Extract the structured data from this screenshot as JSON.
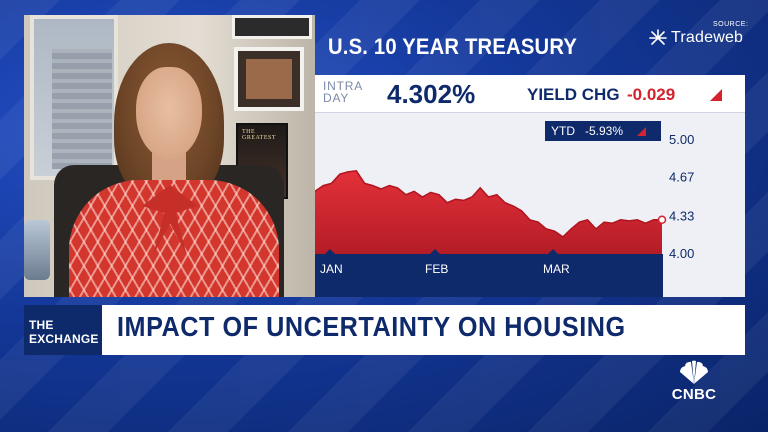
{
  "broadcast": {
    "network": "CNBC",
    "show_name_line1": "THE",
    "show_name_line2": "EXCHANGE",
    "headline": "IMPACT OF UNCERTAINTY ON HOUSING"
  },
  "source": {
    "label": "SOURCE:",
    "name": "Tradeweb"
  },
  "treasury": {
    "title": "U.S. 10 YEAR TREASURY",
    "intraday_line1": "INTRA",
    "intraday_line2": "DAY",
    "yield": "4.302%",
    "yield_chg_label": "YIELD CHG",
    "yield_chg_value": "-0.029",
    "ytd_label": "YTD",
    "ytd_value": "-5.93%"
  },
  "guest_poster_text": "THE GREATEST",
  "colors": {
    "navy": "#0f2a6b",
    "red": "#d4232e",
    "chart_fill": "#d4232e",
    "background_blue": "#14389a"
  },
  "chart_data": {
    "type": "area",
    "title": "U.S. 10 YEAR TREASURY",
    "x_tick_labels": [
      "JAN",
      "FEB",
      "MAR"
    ],
    "y_tick_labels": [
      "5.00",
      "4.67",
      "4.33",
      "4.00"
    ],
    "ylim": [
      4.0,
      5.0
    ],
    "y_ticks": [
      5.0,
      4.67,
      4.33,
      4.0
    ],
    "grid": false,
    "series": [
      {
        "values": [
          4.55,
          4.6,
          4.62,
          4.7,
          4.72,
          4.73,
          4.62,
          4.6,
          4.57,
          4.6,
          4.58,
          4.52,
          4.55,
          4.5,
          4.54,
          4.52,
          4.45,
          4.48,
          4.47,
          4.5,
          4.58,
          4.5,
          4.52,
          4.45,
          4.42,
          4.38,
          4.3,
          4.28,
          4.22,
          4.2,
          4.15,
          4.22,
          4.28,
          4.3,
          4.22,
          4.28,
          4.27,
          4.3,
          4.29,
          4.3,
          4.27,
          4.3,
          4.3
        ]
      }
    ]
  }
}
